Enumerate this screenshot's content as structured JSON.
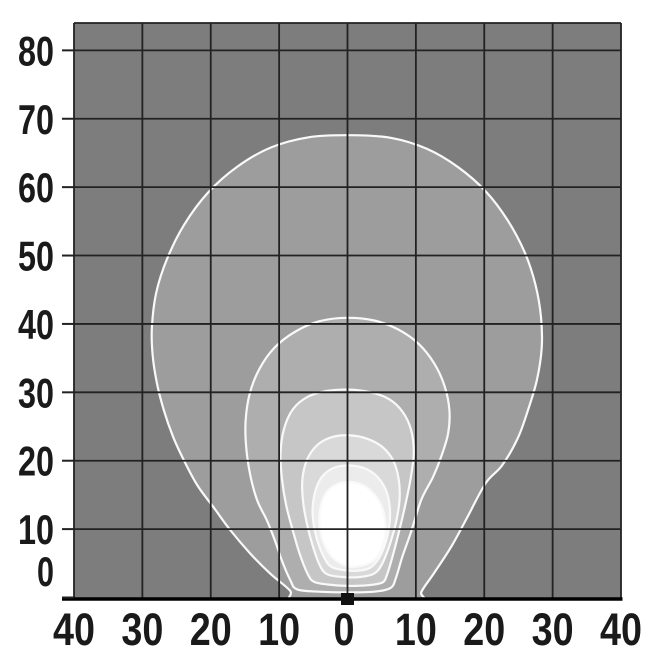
{
  "chart_data": {
    "type": "contour",
    "title": "",
    "xlabel": "",
    "ylabel": "",
    "xlim": [
      -40,
      40
    ],
    "ylim": [
      0,
      84
    ],
    "grid": true,
    "axes": {
      "x": {
        "tick_values": [
          -40,
          -30,
          -20,
          -10,
          0,
          10,
          20,
          30,
          40
        ],
        "tick_labels": [
          "40",
          "30",
          "20",
          "10",
          "0",
          "10",
          "20",
          "30",
          "40"
        ]
      },
      "y": {
        "tick_values": [
          0,
          10,
          20,
          30,
          40,
          50,
          60,
          70,
          80
        ],
        "tick_labels": [
          "0",
          "10",
          "20",
          "30",
          "40",
          "50",
          "60",
          "70",
          "80"
        ]
      }
    },
    "colors": {
      "page_background": "#ffffff",
      "plot_background": "#7d7d7d",
      "grid_line": "#222222",
      "axis_line": "#000000",
      "contour_line": "#f9f9f9",
      "text": "#1a1a1a",
      "marker": "#111111",
      "bands": [
        "#9d9d9d",
        "#aeaeae",
        "#c6c6c6",
        "#d9d9d9",
        "#ececec",
        "#ffffff"
      ]
    },
    "marker": {
      "symbol": "square",
      "x": 0,
      "y": 0,
      "color": "#111111"
    },
    "contours": [
      {
        "name": "contour-1-outermost",
        "band_index": 0,
        "points": [
          [
            -7.2,
            -1.2
          ],
          [
            -8.4,
            1.0
          ],
          [
            -11.3,
            3.5
          ],
          [
            -14.2,
            6.4
          ],
          [
            -17.1,
            9.8
          ],
          [
            -19.6,
            13.2
          ],
          [
            -21.9,
            16.3
          ],
          [
            -23.8,
            19.8
          ],
          [
            -25.5,
            23.5
          ],
          [
            -26.9,
            27.5
          ],
          [
            -27.9,
            31.5
          ],
          [
            -28.5,
            35.5
          ],
          [
            -28.6,
            39.5
          ],
          [
            -28.0,
            44.5
          ],
          [
            -26.4,
            49.5
          ],
          [
            -23.9,
            54.5
          ],
          [
            -20.4,
            59.2
          ],
          [
            -16.1,
            63.0
          ],
          [
            -11.2,
            65.8
          ],
          [
            -5.6,
            67.3
          ],
          [
            0.4,
            67.6
          ],
          [
            6.4,
            67.2
          ],
          [
            11.6,
            65.6
          ],
          [
            16.2,
            62.9
          ],
          [
            20.2,
            59.4
          ],
          [
            23.4,
            55.2
          ],
          [
            25.9,
            50.5
          ],
          [
            27.5,
            45.7
          ],
          [
            28.3,
            41.0
          ],
          [
            28.4,
            36.5
          ],
          [
            27.7,
            31.8
          ],
          [
            26.4,
            27.4
          ],
          [
            24.9,
            23.3
          ],
          [
            22.6,
            19.3
          ],
          [
            20.2,
            16.7
          ],
          [
            17.5,
            11.7
          ],
          [
            15.1,
            7.3
          ],
          [
            12.6,
            3.5
          ],
          [
            10.8,
            0.8
          ],
          [
            10.3,
            -1.2
          ]
        ]
      },
      {
        "name": "contour-2",
        "band_index": 1,
        "points": [
          [
            -7.4,
            1.2
          ],
          [
            -8.4,
            2.6
          ],
          [
            -9.6,
            5.4
          ],
          [
            -10.6,
            8.3
          ],
          [
            -11.8,
            11.3
          ],
          [
            -13.2,
            14.2
          ],
          [
            -14.2,
            17.8
          ],
          [
            -14.8,
            21.8
          ],
          [
            -14.9,
            25.8
          ],
          [
            -14.3,
            29.8
          ],
          [
            -12.9,
            33.4
          ],
          [
            -10.7,
            36.5
          ],
          [
            -7.6,
            38.9
          ],
          [
            -4.1,
            40.4
          ],
          [
            -0.1,
            40.9
          ],
          [
            3.9,
            40.5
          ],
          [
            7.4,
            39.2
          ],
          [
            10.4,
            37.1
          ],
          [
            12.7,
            34.2
          ],
          [
            14.2,
            30.9
          ],
          [
            14.9,
            27.4
          ],
          [
            14.7,
            23.9
          ],
          [
            13.7,
            20.6
          ],
          [
            12.5,
            17.6
          ],
          [
            10.8,
            14.3
          ],
          [
            9.3,
            9.6
          ],
          [
            8.0,
            5.9
          ],
          [
            7.1,
            2.9
          ],
          [
            6.3,
            1.4
          ],
          [
            3.9,
            0.85
          ],
          [
            -0.2,
            0.75
          ],
          [
            -4.2,
            0.85
          ]
        ]
      },
      {
        "name": "contour-3",
        "band_index": 2,
        "points": [
          [
            -4.9,
            2.3
          ],
          [
            -5.8,
            3.4
          ],
          [
            -7.0,
            6.4
          ],
          [
            -8.0,
            9.8
          ],
          [
            -9.0,
            13.6
          ],
          [
            -9.6,
            17.4
          ],
          [
            -9.8,
            21.0
          ],
          [
            -9.3,
            24.6
          ],
          [
            -8.0,
            27.5
          ],
          [
            -5.9,
            29.3
          ],
          [
            -3.1,
            30.2
          ],
          [
            0.2,
            30.4
          ],
          [
            3.4,
            30.0
          ],
          [
            6.1,
            29.0
          ],
          [
            8.1,
            27.1
          ],
          [
            9.3,
            24.5
          ],
          [
            9.7,
            21.3
          ],
          [
            9.3,
            17.8
          ],
          [
            8.6,
            14.2
          ],
          [
            7.7,
            10.3
          ],
          [
            6.7,
            6.4
          ],
          [
            5.8,
            3.4
          ],
          [
            5.1,
            2.2
          ],
          [
            3.0,
            1.8
          ],
          [
            0,
            1.7
          ],
          [
            -2.9,
            1.9
          ]
        ]
      },
      {
        "name": "contour-4",
        "band_index": 3,
        "points": [
          [
            -3.0,
            3.4
          ],
          [
            -4.1,
            4.8
          ],
          [
            -5.1,
            7.6
          ],
          [
            -5.9,
            10.6
          ],
          [
            -6.5,
            14.0
          ],
          [
            -6.6,
            17.3
          ],
          [
            -5.9,
            20.2
          ],
          [
            -4.3,
            22.4
          ],
          [
            -2.1,
            23.5
          ],
          [
            0.4,
            23.7
          ],
          [
            2.9,
            23.2
          ],
          [
            5.1,
            22.0
          ],
          [
            6.7,
            20.0
          ],
          [
            7.5,
            17.2
          ],
          [
            7.6,
            14.2
          ],
          [
            7.1,
            11.0
          ],
          [
            6.2,
            7.8
          ],
          [
            5.1,
            5.0
          ],
          [
            3.9,
            3.5
          ],
          [
            1.8,
            3.0
          ],
          [
            -0.7,
            3.0
          ]
        ]
      },
      {
        "name": "contour-5",
        "band_index": 4,
        "points": [
          [
            -2.4,
            4.5
          ],
          [
            -3.4,
            5.8
          ],
          [
            -4.3,
            8.0
          ],
          [
            -4.9,
            10.4
          ],
          [
            -5.1,
            12.9
          ],
          [
            -4.7,
            15.6
          ],
          [
            -3.7,
            17.7
          ],
          [
            -1.9,
            19.0
          ],
          [
            0.4,
            19.3
          ],
          [
            2.7,
            18.8
          ],
          [
            4.5,
            17.5
          ],
          [
            5.7,
            15.5
          ],
          [
            6.2,
            13.0
          ],
          [
            6.1,
            10.4
          ],
          [
            5.5,
            7.8
          ],
          [
            4.5,
            5.6
          ],
          [
            3.2,
            4.3
          ],
          [
            1.4,
            3.9
          ],
          [
            -0.6,
            4.0
          ]
        ]
      },
      {
        "name": "contour-core-white",
        "band_index": 5,
        "points": [
          [
            -1.9,
            5.6
          ],
          [
            -2.9,
            6.8
          ],
          [
            -3.7,
            8.6
          ],
          [
            -4.1,
            10.7
          ],
          [
            -4.0,
            12.9
          ],
          [
            -3.3,
            15.0
          ],
          [
            -1.9,
            16.4
          ],
          [
            0.2,
            16.9
          ],
          [
            2.3,
            16.4
          ],
          [
            3.9,
            15.1
          ],
          [
            5.0,
            13.3
          ],
          [
            5.5,
            11.2
          ],
          [
            5.5,
            9.0
          ],
          [
            4.9,
            6.9
          ],
          [
            3.8,
            5.4
          ],
          [
            2.2,
            4.7
          ],
          [
            0.2,
            4.5
          ]
        ]
      }
    ]
  }
}
